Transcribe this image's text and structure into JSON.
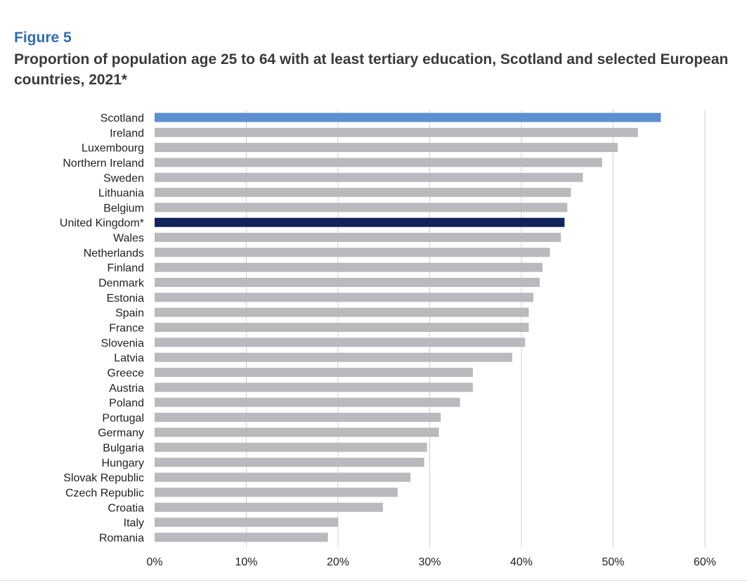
{
  "figure_label": "Figure 5",
  "chart_data": {
    "type": "bar",
    "orientation": "horizontal",
    "title": "Proportion of population age 25 to 64 with at least tertiary education, Scotland and selected European countries, 2021*",
    "xlabel": "",
    "ylabel": "",
    "xlim": [
      0,
      60
    ],
    "ticks": [
      "0%",
      "10%",
      "20%",
      "30%",
      "40%",
      "50%",
      "60%"
    ],
    "tick_values": [
      0,
      10,
      20,
      30,
      40,
      50,
      60
    ],
    "grid": "vertical",
    "legend": "none",
    "categories": [
      "Scotland",
      "Ireland",
      "Luxembourg",
      "Northern Ireland",
      "Sweden",
      "Lithuania",
      "Belgium",
      "United Kingdom*",
      "Wales",
      "Netherlands",
      "Finland",
      "Denmark",
      "Estonia",
      "Spain",
      "France",
      "Slovenia",
      "Latvia",
      "Greece",
      "Austria",
      "Poland",
      "Portugal",
      "Germany",
      "Bulgaria",
      "Hungary",
      "Slovak Republic",
      "Czech Republic",
      "Croatia",
      "Italy",
      "Romania"
    ],
    "values": [
      55.2,
      52.7,
      50.5,
      48.8,
      46.7,
      45.4,
      45.0,
      44.7,
      44.3,
      43.1,
      42.3,
      42.0,
      41.3,
      40.8,
      40.8,
      40.4,
      39.0,
      34.7,
      34.7,
      33.3,
      31.2,
      31.0,
      29.7,
      29.4,
      27.9,
      26.5,
      24.9,
      20.0,
      18.9
    ],
    "colors": {
      "default": "#b9b9be",
      "highlight_scotland": "#5b8fd0",
      "highlight_uk": "#13245a",
      "grid": "#d0d0d0",
      "label": "#222222"
    },
    "highlights": {
      "Scotland": "highlight_scotland",
      "United Kingdom*": "highlight_uk"
    }
  }
}
